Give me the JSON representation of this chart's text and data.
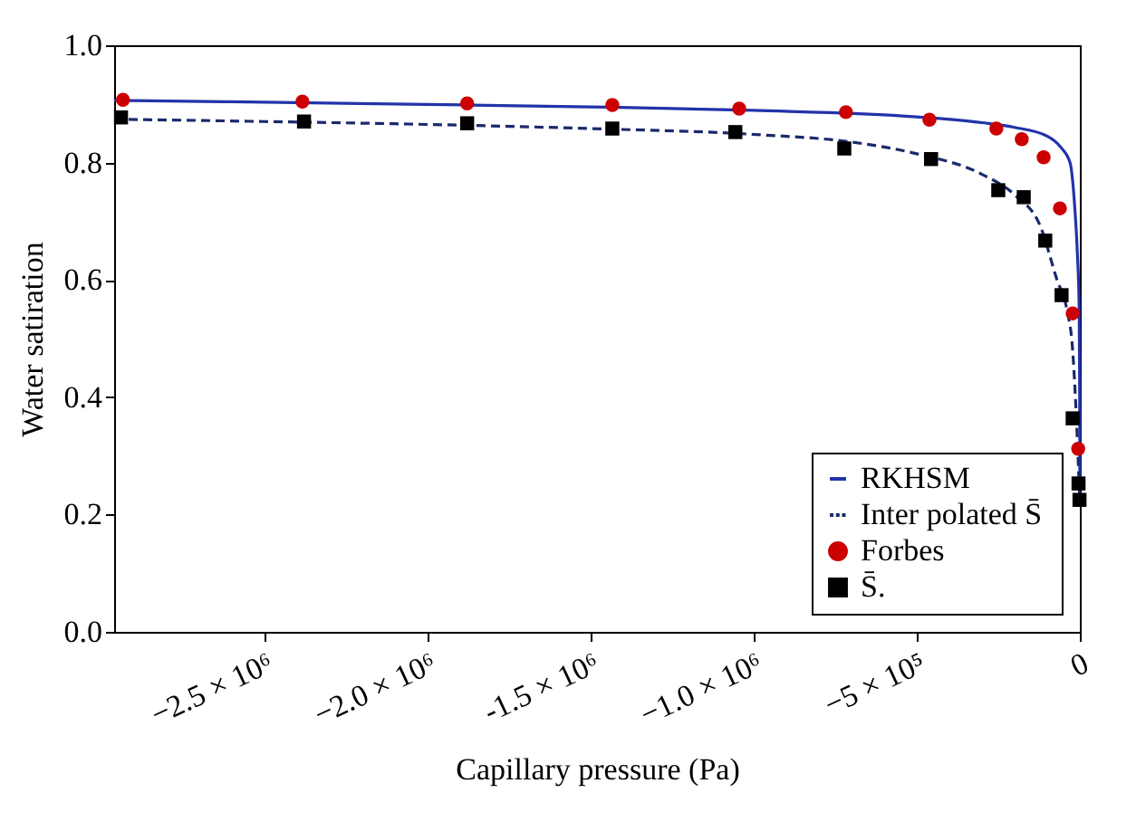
{
  "chart_data": {
    "type": "line",
    "xlabel": "Capillary pressure (Pa)",
    "ylabel": "Water satiration",
    "xlim": [
      -2960000,
      0
    ],
    "ylim": [
      0,
      1
    ],
    "xticks": [
      {
        "value": -2500000,
        "label": "−2.5 × 10⁶"
      },
      {
        "value": -2000000,
        "label": "−2.0 × 10⁶"
      },
      {
        "value": -1500000,
        "label": "-1.5 × 10⁶"
      },
      {
        "value": -1000000,
        "label": "−1.0 × 10⁶"
      },
      {
        "value": -500000,
        "label": "−5 × 10⁵"
      },
      0
    ],
    "yticks": [
      {
        "value": 0,
        "label": "0.0"
      },
      {
        "value": 0.2,
        "label": "0.2"
      },
      {
        "value": 0.4,
        "label": "0.4"
      },
      {
        "value": 0.6,
        "label": "0.6"
      },
      {
        "value": 0.8,
        "label": "0.8"
      },
      {
        "value": 1,
        "label": "1.0"
      }
    ],
    "grid": false,
    "legend": "bottom right",
    "series": [
      {
        "name": "RKHSM",
        "type": "line",
        "line_style": "solid",
        "color": "#2233aa",
        "x": [
          -2960000,
          -2500000,
          -2000000,
          -1500000,
          -1000000,
          -500000,
          -300000,
          -200000,
          -100000,
          -60000,
          -30000,
          -17000,
          -8000,
          -2000,
          -500,
          0
        ],
        "values": [
          0.906,
          0.903,
          0.899,
          0.895,
          0.889,
          0.878,
          0.868,
          0.86,
          0.845,
          0.827,
          0.8,
          0.735,
          0.65,
          0.55,
          0.4,
          0.25
        ]
      },
      {
        "name": "Inter polated  S̄",
        "type": "line",
        "line_style": "dashed",
        "color": "#1a2a6c",
        "x": [
          -2960000,
          -2500000,
          -2000000,
          -1500000,
          -1000000,
          -700000,
          -500000,
          -300000,
          -200000,
          -120000,
          -70000,
          -40000,
          -22000,
          -11000,
          0
        ],
        "values": [
          0.874,
          0.87,
          0.865,
          0.858,
          0.848,
          0.835,
          0.815,
          0.78,
          0.745,
          0.69,
          0.6,
          0.55,
          0.48,
          0.37,
          0.22
        ]
      },
      {
        "name": "Forbes",
        "type": "scatter",
        "marker": "circle",
        "color": "#cc0000",
        "x": [
          -2933000,
          -2383000,
          -1878000,
          -1433000,
          -1044000,
          -717000,
          -461000,
          -256000,
          -178000,
          -111000,
          -61000,
          -22000,
          -5000
        ],
        "values": [
          0.907,
          0.904,
          0.901,
          0.898,
          0.892,
          0.886,
          0.873,
          0.858,
          0.84,
          0.809,
          0.722,
          0.543,
          0.312
        ]
      },
      {
        "name": "S̄.",
        "type": "scatter",
        "marker": "square",
        "color": "#000000",
        "x": [
          -2939000,
          -2378000,
          -1878000,
          -1433000,
          -1056000,
          -722000,
          -456000,
          -250000,
          -172000,
          -106000,
          -56000,
          -22000,
          -4000,
          -1000
        ],
        "values": [
          0.877,
          0.87,
          0.867,
          0.858,
          0.852,
          0.824,
          0.806,
          0.753,
          0.741,
          0.667,
          0.574,
          0.364,
          0.253,
          0.225
        ]
      }
    ]
  }
}
